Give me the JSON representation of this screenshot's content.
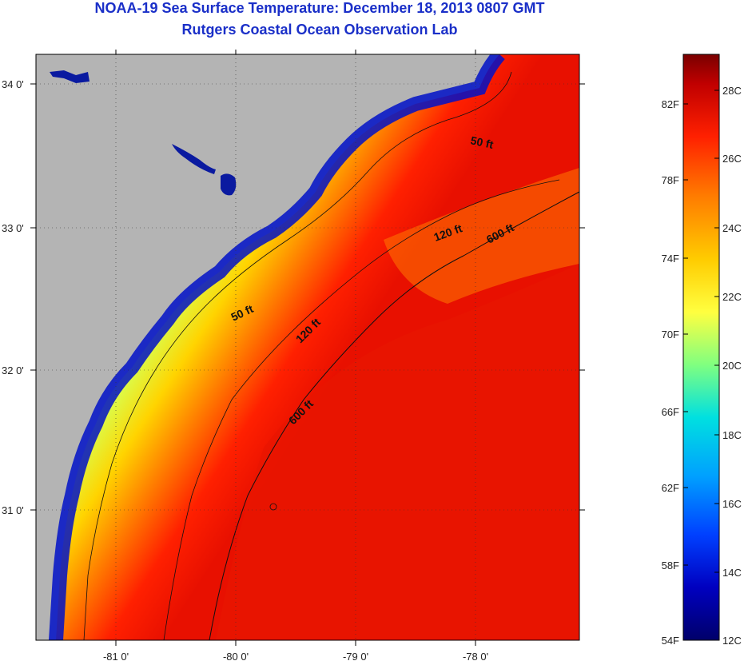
{
  "title": "NOAA-19 Sea Surface Temperature:  December 18, 2013 0807 GMT",
  "subtitle": "Rutgers Coastal Ocean Observation Lab",
  "axes": {
    "lon_ticks": [
      "-81 0'",
      "-80 0'",
      "-79 0'",
      "-78 0'"
    ],
    "lat_ticks": [
      "34 0'",
      "33 0'",
      "32 0'",
      "31 0'"
    ]
  },
  "contour_labels": [
    {
      "text": "50 ft"
    },
    {
      "text": "50 ft"
    },
    {
      "text": "120 ft"
    },
    {
      "text": "120 ft"
    },
    {
      "text": "600 ft"
    },
    {
      "text": "600 ft"
    }
  ],
  "colorbar": {
    "fahrenheit": [
      "82F",
      "78F",
      "74F",
      "70F",
      "66F",
      "62F",
      "58F",
      "54F"
    ],
    "celsius": [
      "28C",
      "26C",
      "24C",
      "22C",
      "20C",
      "18C",
      "16C",
      "14C",
      "12C"
    ],
    "colors": [
      "#7a0000",
      "#c00000",
      "#ff2000",
      "#ff7a00",
      "#ffcc00",
      "#ffff40",
      "#80ff80",
      "#00e0e0",
      "#00a0ff",
      "#0040ff",
      "#0000c0",
      "#00006a"
    ]
  },
  "colors": {
    "land": "#b4b4b4",
    "title": "#1a2fc8"
  }
}
